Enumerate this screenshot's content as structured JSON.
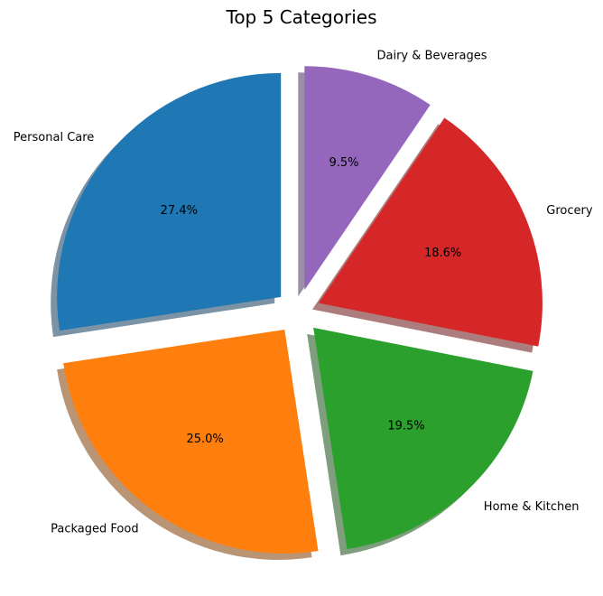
{
  "chart_data": {
    "type": "pie",
    "title": "Top 5 Categories",
    "categories": [
      "Personal Care",
      "Packaged Food",
      "Home & Kitchen",
      "Grocery",
      "Dairy & Beverages"
    ],
    "values": [
      27.4,
      25.0,
      19.5,
      18.6,
      9.5
    ],
    "value_labels": [
      "27.4%",
      "25.0%",
      "19.5%",
      "18.6%",
      "9.5%"
    ],
    "colors": [
      "#1f77b4",
      "#ff7f0e",
      "#2ca02c",
      "#d62728",
      "#9467bd"
    ],
    "start_angle_deg": 90,
    "direction": "counterclockwise",
    "exploded": true,
    "shadow": true
  }
}
